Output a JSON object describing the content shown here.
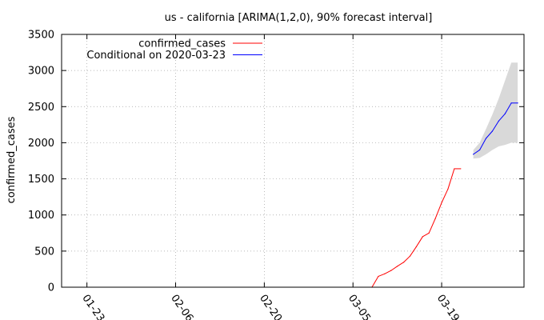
{
  "chart_data": {
    "type": "line",
    "title": "us - california [ARIMA(1,2,0), 90% forecast interval]",
    "xlabel": "",
    "ylabel": "confirmed_cases",
    "x_axis": {
      "type": "date",
      "range": [
        "2020-01-19",
        "2020-04-01"
      ],
      "ticks": [
        "2020-01-23",
        "2020-02-06",
        "2020-02-20",
        "2020-03-05",
        "2020-03-19"
      ],
      "tick_labels": [
        "01-23",
        "02-06",
        "02-20",
        "03-05",
        "03-19"
      ]
    },
    "y_axis": {
      "range": [
        0,
        3500
      ],
      "ticks": [
        0,
        500,
        1000,
        1500,
        2000,
        2500,
        3000,
        3500
      ],
      "tick_labels": [
        "0",
        "500",
        "1000",
        "1500",
        "2000",
        "2500",
        "3000",
        "3500"
      ]
    },
    "grid": true,
    "legend": {
      "position": "top-left"
    },
    "series": [
      {
        "name": "confirmed_cases",
        "color": "#ff0000",
        "x": [
          "2020-03-08",
          "2020-03-09",
          "2020-03-10",
          "2020-03-11",
          "2020-03-12",
          "2020-03-13",
          "2020-03-14",
          "2020-03-15",
          "2020-03-16",
          "2020-03-17",
          "2020-03-18",
          "2020-03-19",
          "2020-03-20",
          "2020-03-21",
          "2020-03-22"
        ],
        "values": [
          0,
          150,
          185,
          230,
          290,
          345,
          430,
          560,
          700,
          750,
          950,
          1170,
          1360,
          1640,
          1640
        ]
      },
      {
        "name": "Conditional on 2020-03-23",
        "color": "#0000ff",
        "x": [
          "2020-03-24",
          "2020-03-25",
          "2020-03-26",
          "2020-03-27",
          "2020-03-28",
          "2020-03-29",
          "2020-03-30",
          "2020-03-31"
        ],
        "values": [
          1840,
          1900,
          2060,
          2160,
          2300,
          2400,
          2550,
          2550
        ]
      }
    ],
    "forecast_interval": {
      "level": "90%",
      "color": "#d9d9d9",
      "x": [
        "2020-03-24",
        "2020-03-25",
        "2020-03-26",
        "2020-03-27",
        "2020-03-28",
        "2020-03-29",
        "2020-03-30",
        "2020-03-31"
      ],
      "lower": [
        1780,
        1790,
        1840,
        1900,
        1950,
        1970,
        2000,
        2000
      ],
      "upper": [
        1900,
        2000,
        2190,
        2390,
        2610,
        2860,
        3110,
        3110
      ]
    }
  }
}
